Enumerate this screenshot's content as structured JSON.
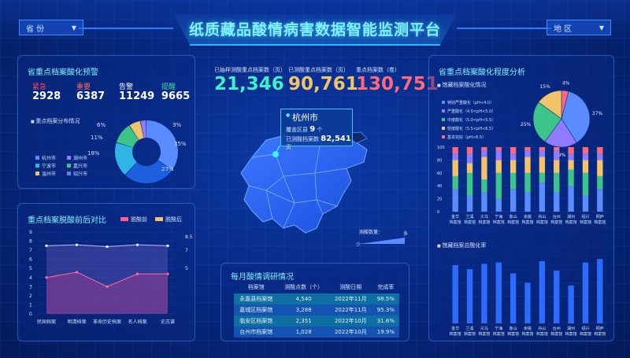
{
  "header": {
    "title": "纸质藏品酸情病害数据智能监测平台",
    "province_label": "省 份",
    "region_label": "地 区"
  },
  "warning_panel": {
    "title": "省重点档案酸化预警",
    "levels": [
      {
        "label": "紧急",
        "value": "2928",
        "color": "#ff4d5e"
      },
      {
        "label": "重要",
        "value": "6387",
        "color": "#ff6a5c"
      },
      {
        "label": "告警",
        "value": "11249",
        "color": "#ffffff"
      },
      {
        "label": "提醒",
        "value": "9665",
        "color": "#38e0a0"
      }
    ],
    "dist_title": "重点档案分布情况",
    "legend": [
      {
        "label": "杭州市",
        "color": "#5b8cff"
      },
      {
        "label": "湖州市",
        "color": "#8f7bff"
      },
      {
        "label": "宁波市",
        "color": "#2fb4e6"
      },
      {
        "label": "嘉兴市",
        "color": "#3cc48a"
      },
      {
        "label": "温州市",
        "color": "#f2c46a"
      },
      {
        "label": "绍兴市",
        "color": "#6a7fd8"
      }
    ],
    "donut_labels": [
      "6%",
      "3%",
      "11%",
      "35%",
      "18%",
      "27%"
    ]
  },
  "donut_left": {
    "type": "pie",
    "values": [
      35,
      27,
      18,
      11,
      6,
      3
    ],
    "colors": [
      "#5b8cff",
      "#1e5fe0",
      "#2fb4e6",
      "#3cc48a",
      "#f2c46a",
      "#8f7bff"
    ]
  },
  "compare_panel": {
    "title": "重点档案脱酸前后对比",
    "legend_before": "脱酸前",
    "legend_after": "脱酸后",
    "legend_before_color": "#ff5c8a",
    "legend_after_color": "#f2c46a",
    "y_ticks": [
      "9",
      "8",
      "7",
      "6",
      "5",
      "4",
      "3",
      "2",
      "1",
      "0"
    ],
    "right_ticks": [
      "8.5",
      "7",
      "5"
    ]
  },
  "chart_data": [
    {
      "type": "line",
      "categories": [
        "民国档案",
        "明清档案",
        "革命历史档案",
        "名人档案",
        "史志谱"
      ],
      "ylim": [
        0,
        9
      ],
      "series": [
        {
          "name": "脱酸后",
          "values": [
            7.5,
            7.6,
            7.4,
            7.6,
            7.5
          ]
        },
        {
          "name": "脱酸前",
          "values": [
            4.0,
            4.6,
            3.0,
            4.4,
            4.4
          ]
        }
      ]
    },
    {
      "type": "bar",
      "title": "馆藏档案酸化情况",
      "categories": [
        "金华\n档案馆",
        "兰溪\n档案馆",
        "义乌\n档案馆",
        "宁海\n档案馆",
        "象山\n档案馆",
        "余姚\n档案馆",
        "舟山\n档案馆",
        "台州\n档案馆",
        "湖州\n档案馆",
        "绍兴\n档案馆",
        "桐庐\n档案馆"
      ],
      "ylim": [
        0,
        100
      ],
      "y_ticks": [
        "100",
        "80",
        "60",
        "40",
        "20",
        "0"
      ],
      "series": [
        {
          "name": "基本完好",
          "values": [
            35,
            25,
            30,
            20,
            35,
            30,
            45,
            30,
            40,
            25,
            35
          ]
        },
        {
          "name": "轻度酸化",
          "values": [
            20,
            35,
            20,
            40,
            25,
            30,
            15,
            30,
            25,
            35,
            20
          ]
        },
        {
          "name": "中度酸化",
          "values": [
            25,
            15,
            35,
            20,
            20,
            25,
            25,
            20,
            15,
            20,
            25
          ]
        },
        {
          "name": "严重酸化",
          "values": [
            10,
            15,
            10,
            15,
            10,
            10,
            10,
            15,
            10,
            10,
            10
          ]
        },
        {
          "name": "特别严重酸化",
          "values": [
            10,
            10,
            5,
            5,
            10,
            5,
            5,
            5,
            10,
            10,
            10
          ]
        }
      ]
    },
    {
      "type": "bar",
      "title": "馆藏档案总酸化率",
      "categories": [
        "金华\n档案馆",
        "兰溪\n档案馆",
        "义乌\n档案馆",
        "宁海\n档案馆",
        "象山\n档案馆",
        "余姚\n档案馆",
        "舟山\n档案馆",
        "台州\n档案馆",
        "湖州\n档案馆",
        "绍兴\n档案馆",
        "桐庐\n档案馆"
      ],
      "values": [
        86,
        80,
        88,
        90,
        74,
        60,
        92,
        78,
        56,
        90,
        95
      ],
      "ylim": [
        0,
        100
      ]
    },
    {
      "type": "pie",
      "title": "馆藏档案酸化情况",
      "labels": [
        "特别严重酸化（pH<4.0）",
        "严重酸化（4.0<pH<5.0）",
        "中度酸化（5.0<pH<5.5）",
        "轻度酸化（5.5<pH<6.5）",
        "基本完好（pH>6.5）"
      ],
      "values": [
        37,
        19,
        25,
        15,
        4
      ],
      "value_labels": [
        "37%",
        "19%",
        "25%",
        "15%",
        "4%"
      ],
      "colors": [
        "#5b8cff",
        "#8f7bff",
        "#3cc48a",
        "#f2c46a",
        "#ff6a7a"
      ]
    }
  ],
  "stats": [
    {
      "label": "已抽样测酸重点档案数（页）",
      "value": "21,346",
      "color": "#3cf0c8"
    },
    {
      "label": "已测酸重点档案数（页）",
      "value": "90,761",
      "color": "#f2c46a"
    },
    {
      "label": "重点档案数（卷）",
      "value": "130,751",
      "color": "#ff6a7a"
    }
  ],
  "map": {
    "city": "杭州市",
    "line1_label": "覆盖区县",
    "line1_value": "9",
    "line1_unit": "个",
    "line2_label": "已测酸档案数",
    "line2_value": "82,541",
    "line2_unit": "页",
    "scale_label": "测酸数量：",
    "scale_high": "多",
    "scale_low": "少"
  },
  "monthly": {
    "title": "每月酸情调研情况",
    "headers": [
      "档案馆",
      "测酸点数（个）",
      "测酸日期",
      "完成率"
    ],
    "rows": [
      [
        "永嘉县档案馆",
        "4,540",
        "2022年11月",
        "98.5%"
      ],
      [
        "嘉城区档案馆",
        "3,288",
        "2022年11月",
        "95.3%"
      ],
      [
        "临安区档案馆",
        "2,351",
        "2022年10月",
        "31.6%"
      ],
      [
        "台州市档案馆",
        "1,028",
        "2022年10月",
        "19.9%"
      ]
    ]
  },
  "right_panel": {
    "title": "省重点档案酸化程度分析",
    "sub1": "馆藏档案酸化情况",
    "sub2": "馆藏档案总酸化率"
  }
}
